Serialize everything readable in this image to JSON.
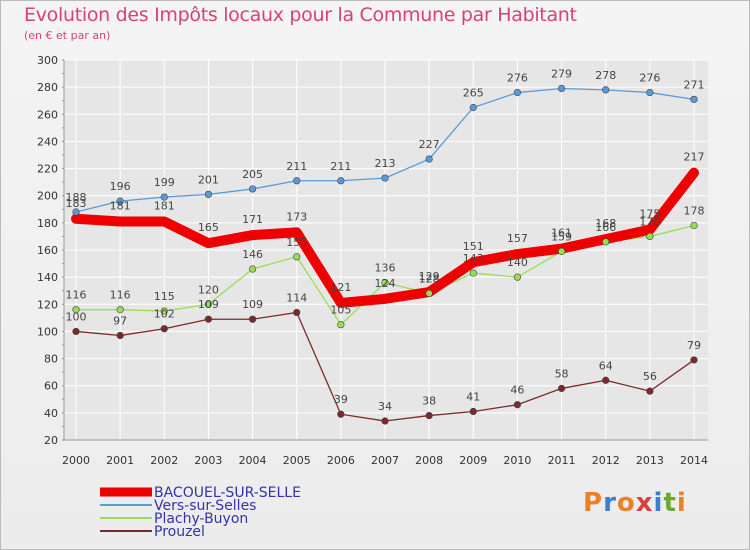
{
  "header": {
    "title": "Evolution des Impôts locaux pour la Commune par Habitant",
    "subtitle": "(en € et par an)"
  },
  "logo": {
    "text": "Proxiti",
    "colors": [
      "#e8822a",
      "#3a7fd0",
      "#e8822a",
      "#d94040",
      "#3a7fd0",
      "#6aaa30",
      "#e8822a"
    ]
  },
  "colors": {
    "frame_border": "#bbbbbb",
    "grid": "#ffffff",
    "title": "#d9407a"
  },
  "chart_data": {
    "type": "line",
    "x": [
      2000,
      2001,
      2002,
      2003,
      2004,
      2005,
      2006,
      2007,
      2008,
      2009,
      2010,
      2011,
      2012,
      2013,
      2014
    ],
    "ylim": [
      20,
      300
    ],
    "yticks": [
      20,
      40,
      60,
      80,
      100,
      120,
      140,
      160,
      180,
      200,
      220,
      240,
      260,
      280,
      300
    ],
    "grid": true,
    "legend_position": "bottom-left",
    "series": [
      {
        "name": "BACOUEL-SUR-SELLE",
        "color": "#ee0000",
        "values": [
          183,
          181,
          181,
          165,
          171,
          173,
          121,
          124,
          129,
          151,
          157,
          161,
          168,
          175,
          217
        ],
        "labels": [
          "183",
          "181",
          "181",
          "165",
          "171",
          "173",
          "121",
          "124",
          "129",
          "151",
          "157",
          "161",
          "168",
          "175",
          "217"
        ],
        "bold": true
      },
      {
        "name": "Vers-sur-Selles",
        "color": "#5b9bd5",
        "values": [
          188,
          196,
          199,
          201,
          205,
          211,
          211,
          213,
          227,
          265,
          276,
          279,
          278,
          276,
          271
        ],
        "labels": [
          "188",
          "196",
          "199",
          "201",
          "205",
          "211",
          "211",
          "213",
          "227",
          "265",
          "276",
          "279",
          "278",
          "276",
          "271"
        ]
      },
      {
        "name": "Plachy-Buyon",
        "color": "#99dd55",
        "values": [
          116,
          116,
          115,
          120,
          146,
          155,
          105,
          136,
          128,
          143,
          140,
          159,
          166,
          170,
          178
        ],
        "labels": [
          "116",
          "116",
          "115",
          "120",
          "146",
          "155",
          "105",
          "136",
          "128",
          "143",
          "140",
          "159",
          "166",
          "170",
          "178"
        ]
      },
      {
        "name": "Prouzel",
        "color": "#7a2a2a",
        "values": [
          100,
          97,
          102,
          109,
          109,
          114,
          39,
          34,
          38,
          41,
          46,
          58,
          64,
          56,
          79
        ],
        "labels": [
          "100",
          "97",
          "102",
          "109",
          "109",
          "114",
          "39",
          "34",
          "38",
          "41",
          "46",
          "58",
          "64",
          "56",
          "79"
        ]
      }
    ]
  }
}
